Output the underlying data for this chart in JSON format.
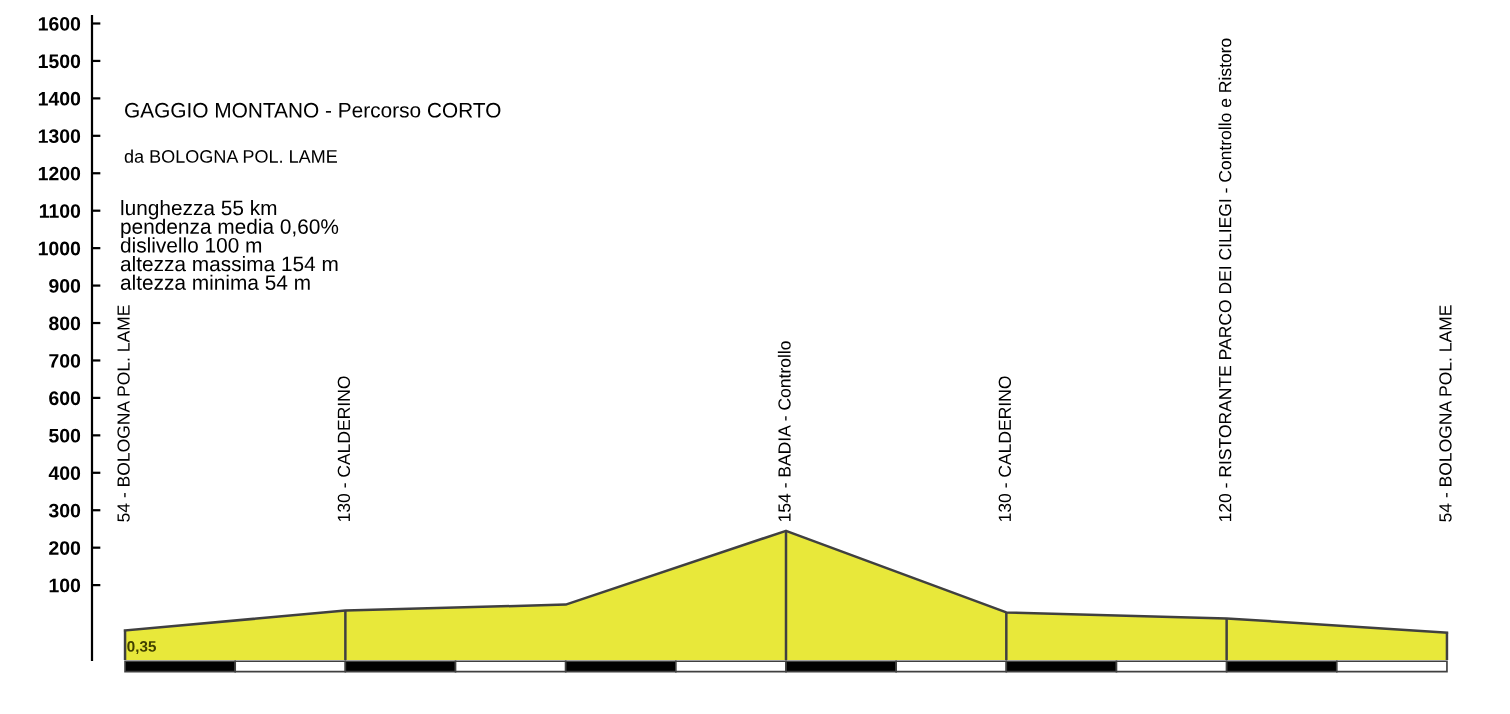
{
  "chart_data": {
    "type": "line",
    "title": "GAGGIO MONTANO - Percorso CORTO",
    "subtitle": "da BOLOGNA POL. LAME",
    "categories": [
      "54 - BOLOGNA POL. LAME",
      "130 - CALDERINO",
      null,
      "154 - BADIA - Controllo",
      "130 - CALDERINO",
      "120 - RISTORANTE PARCO DEI CILIEGI - Controllo e Ristoro",
      "54 - BOLOGNA POL. LAME"
    ],
    "series": [
      {
        "color": "#404040",
        "values": [
          -21,
          32,
          48,
          245,
          27,
          11,
          -27
        ]
      }
    ],
    "marker": "none",
    "line_style": "solid",
    "annotations": [
      "lunghezza 55 km\npendenza media 0,60%\ndislivello 100 m\naltezza massima 154 m\naltezza minima 54 m",
      "0,35"
    ],
    "ylim": [
      -100,
      1620
    ],
    "yticks": [
      100,
      200,
      300,
      400,
      500,
      600,
      700,
      800,
      900,
      1000,
      1100,
      1200,
      1300,
      1400,
      1500,
      1600
    ],
    "grid": false
  }
}
